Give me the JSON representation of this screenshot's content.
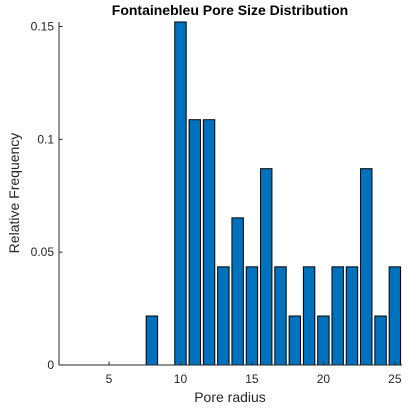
{
  "chart_data": {
    "type": "bar",
    "title": "Fontainebleu Pore Size Distribution",
    "xlabel": "Pore radius",
    "ylabel": "Relative Frequency",
    "xlim": [
      1.5,
      25.5
    ],
    "ylim": [
      0,
      0.152
    ],
    "xticks": [
      5,
      10,
      15,
      20,
      25
    ],
    "yticks": [
      0,
      0.05,
      0.1,
      0.15
    ],
    "ytick_labels": [
      "0",
      "0.05",
      "0.1",
      "0.15"
    ],
    "bar_color": "#0072BD",
    "edge_color": "#000000",
    "x": [
      8,
      10,
      11,
      12,
      13,
      14,
      15,
      16,
      17,
      18,
      19,
      20,
      21,
      22,
      23,
      24,
      25
    ],
    "values": [
      0.0217,
      0.1522,
      0.1087,
      0.1087,
      0.0435,
      0.0652,
      0.0435,
      0.087,
      0.0435,
      0.0217,
      0.0435,
      0.0217,
      0.0435,
      0.0435,
      0.087,
      0.0217,
      0.0435
    ]
  }
}
